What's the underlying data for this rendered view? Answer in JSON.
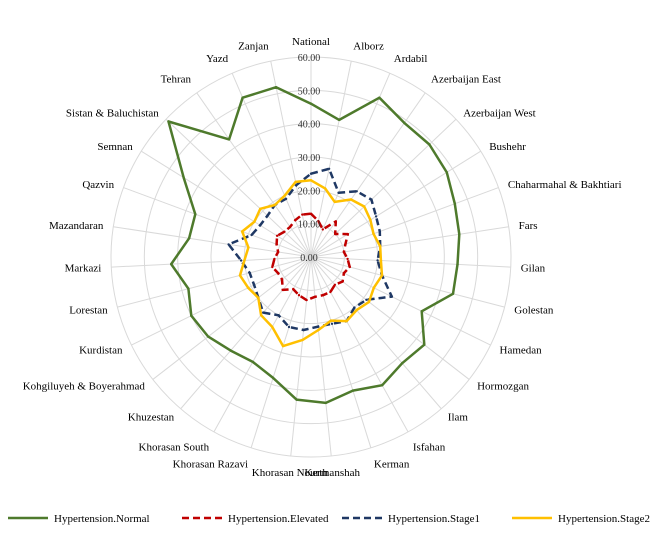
{
  "chart_data": {
    "type": "radar",
    "title": "",
    "categories": [
      "National",
      "Alborz",
      "Ardabil",
      "Azerbaijan East",
      "Azerbaijan West",
      "Bushehr",
      "Chaharmahal & Bakhtiari",
      "Fars",
      "Gilan",
      "Golestan",
      "Hamedan",
      "Hormozgan",
      "Ilam",
      "Isfahan",
      "Kerman",
      "Kermanshah",
      "Khorasan Nourth",
      "Khorasan Razavi",
      "Khorasan South",
      "Khuzestan",
      "Kohgiluyeh & Boyerahmad",
      "Kurdistan",
      "Lorestan",
      "Markazi",
      "Mazandaran",
      "Qazvin",
      "Semnan",
      "Sistan & Baluchistan",
      "Tehran",
      "Yazd",
      "Zanjan"
    ],
    "rlim": [
      0,
      60
    ],
    "ticks": [
      "0.00",
      "10.00",
      "20.00",
      "30.00",
      "40.00",
      "50.00",
      "60.00"
    ],
    "tick_values": [
      0,
      10,
      20,
      30,
      40,
      50,
      60
    ],
    "grid": true,
    "legend_position": "bottom",
    "series": [
      {
        "name": "Hypertension.Normal",
        "color": "#4e7a2c",
        "dash": "solid",
        "values": [
          46,
          42,
          52,
          49,
          49,
          48,
          46,
          45,
          44,
          44,
          37,
          43,
          42,
          44,
          42,
          44,
          43,
          38,
          36,
          37,
          39,
          40,
          38,
          42,
          37,
          37,
          45,
          59,
          43,
          52,
          52
        ]
      },
      {
        "name": "Hypertension.Elevated",
        "color": "#c00000",
        "dash": "dash",
        "values": [
          13,
          11,
          9,
          13,
          10,
          13,
          11,
          10,
          11,
          12,
          11,
          12,
          11,
          12,
          12,
          12,
          13,
          12,
          11,
          13,
          11,
          11,
          12,
          11,
          10,
          11,
          12,
          11,
          11,
          12,
          13
        ]
      },
      {
        "name": "Hypertension.Stage1",
        "color": "#1f3864",
        "dash": "dash",
        "values": [
          25,
          27,
          21,
          24,
          25,
          23,
          22,
          21,
          20,
          22,
          27,
          21,
          20,
          22,
          21,
          21,
          22,
          22,
          20,
          22,
          20,
          19,
          19,
          21,
          25,
          19,
          18,
          18,
          19,
          19,
          22
        ]
      },
      {
        "name": "Hypertension.Stage2",
        "color": "#ffc000",
        "dash": "solid",
        "values": [
          23,
          21,
          18,
          21,
          22,
          21,
          20,
          21,
          21,
          22,
          21,
          22,
          21,
          22,
          20,
          22,
          25,
          28,
          24,
          23,
          20,
          21,
          22,
          20,
          19,
          22,
          20,
          21,
          19,
          20,
          23
        ]
      }
    ]
  }
}
